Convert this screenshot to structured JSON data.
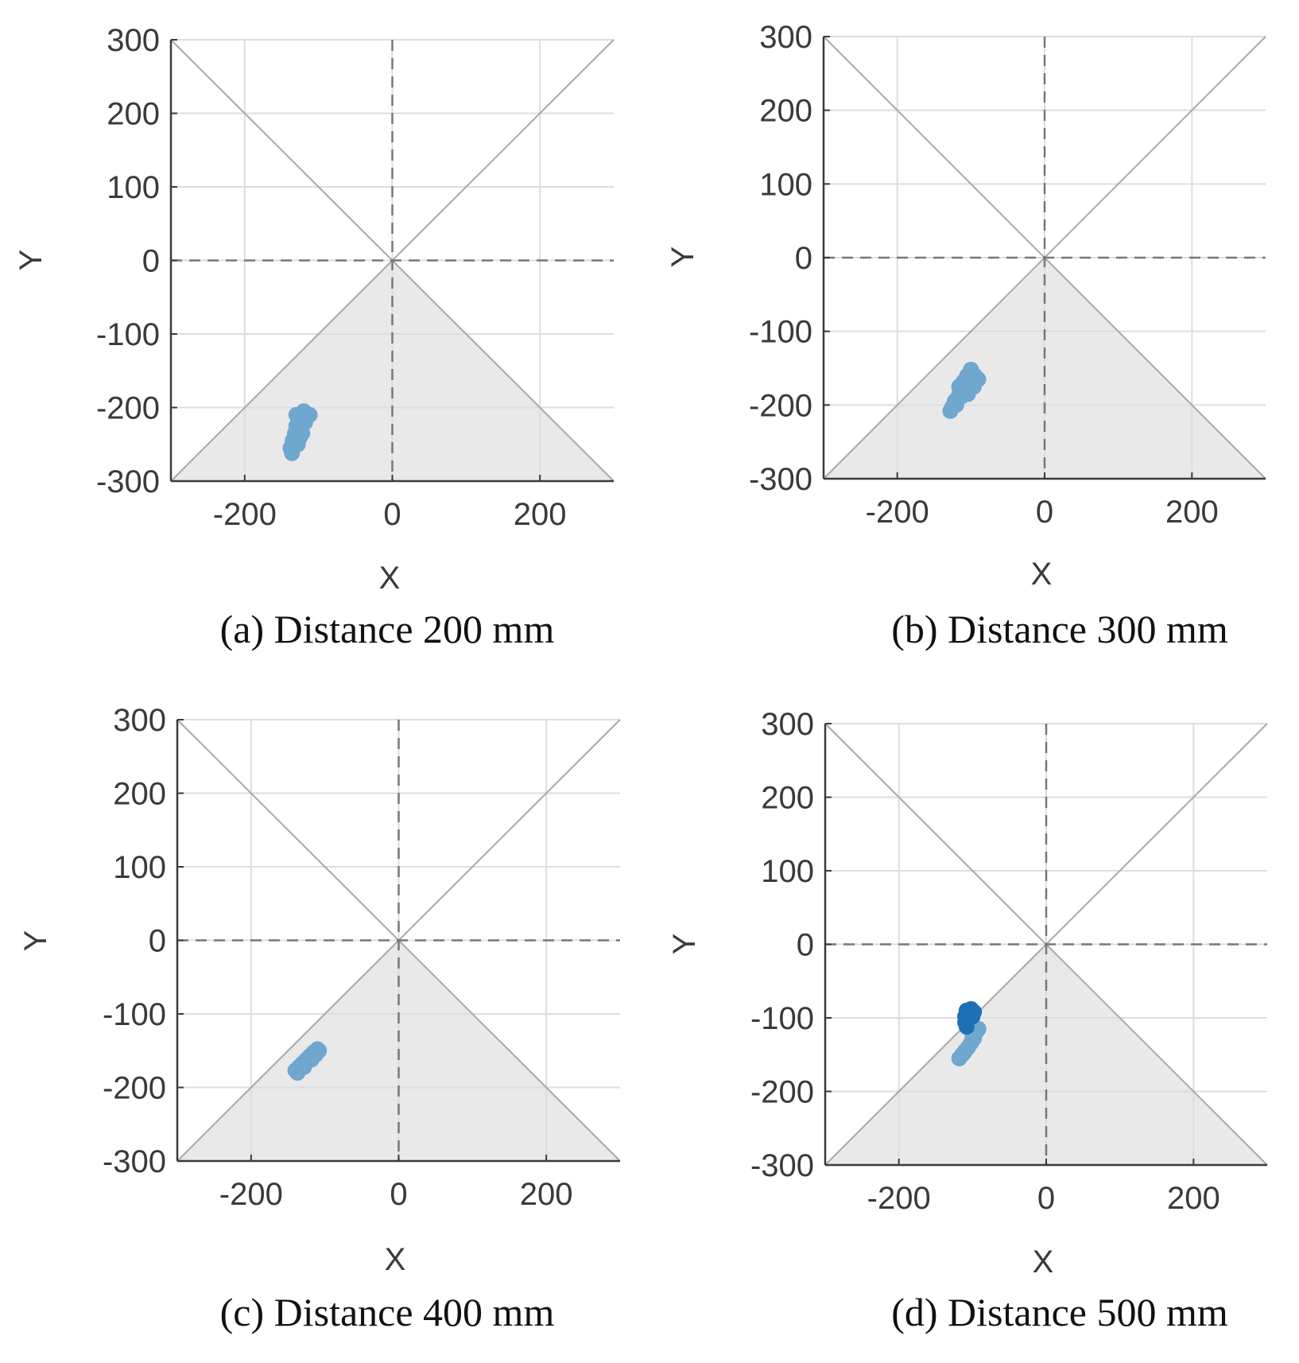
{
  "chart_data": [
    {
      "type": "scatter",
      "caption": "(a) Distance 200 mm",
      "xlabel": "X",
      "ylabel": "Y",
      "xlim": [
        -300,
        300
      ],
      "ylim": [
        -300,
        300
      ],
      "xticks": [
        "-200",
        "0",
        "200"
      ],
      "yticks": [
        "300",
        "200",
        "100",
        "0",
        "-100",
        "-200",
        "-300"
      ],
      "grid": true,
      "shaded_region": "triangle between y=x and y=-x below origin",
      "clusters": [
        {
          "color": "#6fa7cf",
          "points": [
            [
              -120,
              -205
            ],
            [
              -125,
              -215
            ],
            [
              -130,
              -225
            ],
            [
              -132,
              -235
            ],
            [
              -135,
              -245
            ],
            [
              -138,
              -255
            ],
            [
              -136,
              -262
            ],
            [
              -128,
              -250
            ],
            [
              -122,
              -235
            ],
            [
              -118,
              -220
            ],
            [
              -112,
              -210
            ],
            [
              -125,
              -240
            ],
            [
              -130,
              -210
            ]
          ]
        }
      ]
    },
    {
      "type": "scatter",
      "caption": "(b) Distance 300 mm",
      "xlabel": "X",
      "ylabel": "Y",
      "xlim": [
        -300,
        300
      ],
      "ylim": [
        -300,
        300
      ],
      "xticks": [
        "-200",
        "0",
        "200"
      ],
      "yticks": [
        "300",
        "200",
        "100",
        "0",
        "-100",
        "-200",
        "-300"
      ],
      "grid": true,
      "shaded_region": "triangle between y=x and y=-x below origin",
      "clusters": [
        {
          "color": "#6fa7cf",
          "points": [
            [
              -100,
              -152
            ],
            [
              -95,
              -160
            ],
            [
              -90,
              -165
            ],
            [
              -105,
              -160
            ],
            [
              -110,
              -168
            ],
            [
              -100,
              -172
            ],
            [
              -108,
              -178
            ],
            [
              -115,
              -182
            ],
            [
              -118,
              -190
            ],
            [
              -122,
              -195
            ],
            [
              -125,
              -202
            ],
            [
              -128,
              -208
            ],
            [
              -120,
              -200
            ],
            [
              -112,
              -188
            ],
            [
              -96,
              -175
            ],
            [
              -104,
              -185
            ],
            [
              -116,
              -175
            ]
          ]
        }
      ]
    },
    {
      "type": "scatter",
      "caption": "(c) Distance 400 mm",
      "xlabel": "X",
      "ylabel": "Y",
      "xlim": [
        -300,
        300
      ],
      "ylim": [
        -300,
        300
      ],
      "xticks": [
        "-200",
        "0",
        "200"
      ],
      "yticks": [
        "300",
        "200",
        "100",
        "0",
        "-100",
        "-200",
        "-300"
      ],
      "grid": true,
      "shaded_region": "triangle between y=x and y=-x below origin",
      "clusters": [
        {
          "color": "#6fa7cf",
          "points": [
            [
              -110,
              -148
            ],
            [
              -115,
              -152
            ],
            [
              -120,
              -157
            ],
            [
              -125,
              -162
            ],
            [
              -130,
              -167
            ],
            [
              -135,
              -172
            ],
            [
              -140,
              -177
            ],
            [
              -137,
              -180
            ],
            [
              -128,
              -172
            ],
            [
              -118,
              -162
            ],
            [
              -112,
              -155
            ],
            [
              -108,
              -150
            ]
          ]
        }
      ]
    },
    {
      "type": "scatter",
      "caption": "(d) Distance 500 mm",
      "xlabel": "X",
      "ylabel": "Y",
      "xlim": [
        -300,
        300
      ],
      "ylim": [
        -300,
        300
      ],
      "xticks": [
        "-200",
        "0",
        "200"
      ],
      "yticks": [
        "300",
        "200",
        "100",
        "0",
        "-100",
        "-200",
        "-300"
      ],
      "grid": true,
      "shaded_region": "triangle between y=x and y=-x below origin",
      "clusters": [
        {
          "color": "#6fa7cf",
          "points": [
            [
              -92,
              -115
            ],
            [
              -96,
              -120
            ],
            [
              -98,
              -128
            ],
            [
              -102,
              -134
            ],
            [
              -106,
              -140
            ],
            [
              -110,
              -145
            ],
            [
              -114,
              -150
            ],
            [
              -118,
              -155
            ],
            [
              -112,
              -148
            ],
            [
              -100,
              -125
            ],
            [
              -94,
              -118
            ]
          ]
        },
        {
          "color": "#1f6fb4",
          "points": [
            [
              -108,
              -90
            ],
            [
              -102,
              -88
            ],
            [
              -98,
              -92
            ],
            [
              -104,
              -96
            ],
            [
              -110,
              -98
            ],
            [
              -106,
              -102
            ],
            [
              -110,
              -106
            ],
            [
              -108,
              -112
            ],
            [
              -100,
              -98
            ]
          ]
        }
      ]
    }
  ]
}
